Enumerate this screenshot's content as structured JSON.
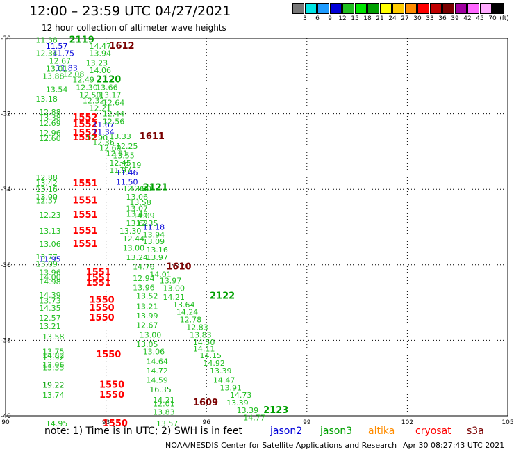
{
  "header": {
    "title": "12:00 – 23:59 UTC 04/27/2021",
    "subtitle": "12 hour collection of altimeter wave heights"
  },
  "legend": {
    "unit": "(ft)",
    "colors": [
      "#777777",
      "#00e5e5",
      "#1e9bff",
      "#0000d8",
      "#1fbf1f",
      "#00e600",
      "#00a000",
      "#ffff00",
      "#ffcc00",
      "#ff8c00",
      "#ff0000",
      "#c00000",
      "#7a0000",
      "#a000a0",
      "#ff66ff",
      "#ffaaff",
      "#000000"
    ],
    "labels": [
      "3",
      "6",
      "9",
      "12",
      "15",
      "18",
      "21",
      "24",
      "27",
      "30",
      "33",
      "36",
      "39",
      "42",
      "45",
      "70"
    ]
  },
  "map": {
    "x_ticks": [
      "90",
      "93",
      "96",
      "99",
      "102",
      "105"
    ],
    "y_ticks": [
      "-30",
      "-32",
      "-34",
      "-36",
      "-38",
      "-40"
    ]
  },
  "chart_data": {
    "type": "scatter",
    "xlim": [
      90,
      105
    ],
    "ylim": [
      -40,
      -30
    ],
    "grid": true,
    "x_ticks": [
      90,
      93,
      96,
      99,
      102,
      105
    ],
    "y_ticks": [
      -30,
      -32,
      -34,
      -36,
      -38,
      -40
    ],
    "points": [
      {
        "x": 90.9,
        "y": -30.05,
        "t": "11.38",
        "c": "#1fbf1f"
      },
      {
        "x": 91.9,
        "y": -30.05,
        "t": "2119",
        "c": "#00a000",
        "b": 1
      },
      {
        "x": 92.5,
        "y": -30.2,
        "t": "14.47",
        "c": "#1fbf1f"
      },
      {
        "x": 93.1,
        "y": -30.2,
        "t": "1612",
        "c": "#7a0000",
        "b": 1
      },
      {
        "x": 91.2,
        "y": -30.2,
        "t": "11.57",
        "c": "#0000d8"
      },
      {
        "x": 91.4,
        "y": -30.4,
        "t": "11.75",
        "c": "#0000d8"
      },
      {
        "x": 92.5,
        "y": -30.4,
        "t": "13.94",
        "c": "#1fbf1f"
      },
      {
        "x": 90.9,
        "y": -30.4,
        "t": "12.34",
        "c": "#1fbf1f"
      },
      {
        "x": 91.3,
        "y": -30.6,
        "t": "12.67",
        "c": "#1fbf1f"
      },
      {
        "x": 92.4,
        "y": -30.65,
        "t": "13.23",
        "c": "#1fbf1f"
      },
      {
        "x": 91.2,
        "y": -30.8,
        "t": "13.01",
        "c": "#1fbf1f"
      },
      {
        "x": 91.5,
        "y": -30.78,
        "t": "11.83",
        "c": "#0000d8"
      },
      {
        "x": 92.5,
        "y": -30.85,
        "t": "14.06",
        "c": "#1fbf1f"
      },
      {
        "x": 91.7,
        "y": -30.95,
        "t": "12.08",
        "c": "#1fbf1f"
      },
      {
        "x": 91.1,
        "y": -31.0,
        "t": "13.88",
        "c": "#1fbf1f"
      },
      {
        "x": 92.0,
        "y": -31.1,
        "t": "12.49",
        "c": "#1fbf1f"
      },
      {
        "x": 92.7,
        "y": -31.1,
        "t": "2120",
        "c": "#00a000",
        "b": 1
      },
      {
        "x": 92.1,
        "y": -31.3,
        "t": "12.30",
        "c": "#1fbf1f"
      },
      {
        "x": 92.7,
        "y": -31.3,
        "t": "13.66",
        "c": "#1fbf1f"
      },
      {
        "x": 91.2,
        "y": -31.35,
        "t": "13.54",
        "c": "#1fbf1f"
      },
      {
        "x": 92.2,
        "y": -31.5,
        "t": "12.50",
        "c": "#1fbf1f"
      },
      {
        "x": 92.8,
        "y": -31.5,
        "t": "13.17",
        "c": "#1fbf1f"
      },
      {
        "x": 90.9,
        "y": -31.6,
        "t": "13.18",
        "c": "#1fbf1f"
      },
      {
        "x": 92.3,
        "y": -31.65,
        "t": "12.32",
        "c": "#1fbf1f"
      },
      {
        "x": 92.9,
        "y": -31.7,
        "t": "12.64",
        "c": "#1fbf1f"
      },
      {
        "x": 92.5,
        "y": -31.85,
        "t": "12.21",
        "c": "#1fbf1f"
      },
      {
        "x": 91.0,
        "y": -31.95,
        "t": "12.88",
        "c": "#1fbf1f"
      },
      {
        "x": 92.9,
        "y": -32.0,
        "t": "12.44",
        "c": "#1fbf1f"
      },
      {
        "x": 91.0,
        "y": -32.1,
        "t": "13.38",
        "c": "#1fbf1f"
      },
      {
        "x": 92.0,
        "y": -32.1,
        "t": "1552",
        "c": "#ff0000",
        "b": 1
      },
      {
        "x": 92.9,
        "y": -32.2,
        "t": "12.56",
        "c": "#1fbf1f"
      },
      {
        "x": 91.0,
        "y": -32.25,
        "t": "12.69",
        "c": "#1fbf1f"
      },
      {
        "x": 92.0,
        "y": -32.28,
        "t": "1552",
        "c": "#ff0000",
        "b": 1
      },
      {
        "x": 92.6,
        "y": -32.28,
        "t": "11.67",
        "c": "#0000d8"
      },
      {
        "x": 91.0,
        "y": -32.5,
        "t": "12.96",
        "c": "#1fbf1f"
      },
      {
        "x": 92.0,
        "y": -32.5,
        "t": "1552",
        "c": "#ff0000",
        "b": 1
      },
      {
        "x": 92.6,
        "y": -32.48,
        "t": "11.34",
        "c": "#0000d8"
      },
      {
        "x": 91.0,
        "y": -32.65,
        "t": "12.60",
        "c": "#1fbf1f"
      },
      {
        "x": 92.0,
        "y": -32.63,
        "t": "1552",
        "c": "#ff0000",
        "b": 1
      },
      {
        "x": 92.4,
        "y": -32.63,
        "t": "12.90",
        "c": "#1fbf1f"
      },
      {
        "x": 93.1,
        "y": -32.6,
        "t": "13.33",
        "c": "#1fbf1f"
      },
      {
        "x": 94.0,
        "y": -32.6,
        "t": "1611",
        "c": "#7a0000",
        "b": 1
      },
      {
        "x": 92.6,
        "y": -32.75,
        "t": "12.36",
        "c": "#1fbf1f"
      },
      {
        "x": 93.3,
        "y": -32.85,
        "t": "12.25",
        "c": "#1fbf1f"
      },
      {
        "x": 92.8,
        "y": -32.9,
        "t": "12.60",
        "c": "#1fbf1f"
      },
      {
        "x": 93.2,
        "y": -33.1,
        "t": "13.55",
        "c": "#1fbf1f"
      },
      {
        "x": 93.0,
        "y": -33.05,
        "t": "12.81",
        "c": "#1fbf1f"
      },
      {
        "x": 93.1,
        "y": -33.3,
        "t": "12.45",
        "c": "#1fbf1f"
      },
      {
        "x": 93.4,
        "y": -33.35,
        "t": "12.19",
        "c": "#1fbf1f"
      },
      {
        "x": 93.1,
        "y": -33.5,
        "t": "11.97",
        "c": "#1fbf1f"
      },
      {
        "x": 93.3,
        "y": -33.55,
        "t": "11.46",
        "c": "#0000d8"
      },
      {
        "x": 90.9,
        "y": -33.68,
        "t": "12.88",
        "c": "#1fbf1f"
      },
      {
        "x": 93.3,
        "y": -33.8,
        "t": "11.50",
        "c": "#0000d8"
      },
      {
        "x": 90.9,
        "y": -33.83,
        "t": "13.42",
        "c": "#1fbf1f"
      },
      {
        "x": 92.0,
        "y": -33.85,
        "t": "1551",
        "c": "#ff0000",
        "b": 1
      },
      {
        "x": 90.9,
        "y": -34.0,
        "t": "13.16",
        "c": "#1fbf1f"
      },
      {
        "x": 93.5,
        "y": -33.98,
        "t": "12.36",
        "c": "#1fbf1f"
      },
      {
        "x": 93.7,
        "y": -33.98,
        "t": "12.80",
        "c": "#1fbf1f"
      },
      {
        "x": 94.1,
        "y": -33.95,
        "t": "2121",
        "c": "#00a000",
        "b": 1
      },
      {
        "x": 90.9,
        "y": -34.2,
        "t": "13.00",
        "c": "#1fbf1f"
      },
      {
        "x": 93.6,
        "y": -34.2,
        "t": "13.06",
        "c": "#1fbf1f"
      },
      {
        "x": 90.9,
        "y": -34.3,
        "t": "12.57",
        "c": "#1fbf1f"
      },
      {
        "x": 92.0,
        "y": -34.3,
        "t": "1551",
        "c": "#ff0000",
        "b": 1
      },
      {
        "x": 93.7,
        "y": -34.35,
        "t": "13.58",
        "c": "#1fbf1f"
      },
      {
        "x": 93.6,
        "y": -34.5,
        "t": "13.07",
        "c": "#1fbf1f"
      },
      {
        "x": 91.0,
        "y": -34.68,
        "t": "12.23",
        "c": "#1fbf1f"
      },
      {
        "x": 92.0,
        "y": -34.68,
        "t": "1551",
        "c": "#ff0000",
        "b": 1
      },
      {
        "x": 93.8,
        "y": -34.7,
        "t": "14.09",
        "c": "#1fbf1f"
      },
      {
        "x": 93.6,
        "y": -34.65,
        "t": "13.48",
        "c": "#1fbf1f"
      },
      {
        "x": 93.9,
        "y": -34.9,
        "t": "12.35",
        "c": "#1fbf1f"
      },
      {
        "x": 93.6,
        "y": -34.9,
        "t": "13.62",
        "c": "#1fbf1f"
      },
      {
        "x": 94.1,
        "y": -35.0,
        "t": "11.18",
        "c": "#0000d8"
      },
      {
        "x": 91.0,
        "y": -35.1,
        "t": "13.13",
        "c": "#1fbf1f"
      },
      {
        "x": 92.0,
        "y": -35.1,
        "t": "1551",
        "c": "#ff0000",
        "b": 1
      },
      {
        "x": 93.4,
        "y": -35.1,
        "t": "13.30",
        "c": "#1fbf1f"
      },
      {
        "x": 94.1,
        "y": -35.2,
        "t": "13.94",
        "c": "#1fbf1f"
      },
      {
        "x": 93.5,
        "y": -35.3,
        "t": "12.44",
        "c": "#1fbf1f"
      },
      {
        "x": 94.1,
        "y": -35.38,
        "t": "13.09",
        "c": "#1fbf1f"
      },
      {
        "x": 91.0,
        "y": -35.45,
        "t": "13.06",
        "c": "#1fbf1f"
      },
      {
        "x": 92.0,
        "y": -35.45,
        "t": "1551",
        "c": "#ff0000",
        "b": 1
      },
      {
        "x": 93.5,
        "y": -35.55,
        "t": "13.00",
        "c": "#1fbf1f"
      },
      {
        "x": 94.2,
        "y": -35.6,
        "t": "13.16",
        "c": "#1fbf1f"
      },
      {
        "x": 90.9,
        "y": -35.78,
        "t": "13.77",
        "c": "#1fbf1f"
      },
      {
        "x": 93.6,
        "y": -35.8,
        "t": "13.24",
        "c": "#1fbf1f"
      },
      {
        "x": 94.2,
        "y": -35.8,
        "t": "13.97",
        "c": "#1fbf1f"
      },
      {
        "x": 91.0,
        "y": -35.85,
        "t": "11.95",
        "c": "#0000d8"
      },
      {
        "x": 90.9,
        "y": -35.98,
        "t": "13.09",
        "c": "#1fbf1f"
      },
      {
        "x": 93.8,
        "y": -36.05,
        "t": "14.76",
        "c": "#1fbf1f"
      },
      {
        "x": 94.8,
        "y": -36.05,
        "t": "1610",
        "c": "#7a0000",
        "b": 1
      },
      {
        "x": 91.0,
        "y": -36.2,
        "t": "13.96",
        "c": "#1fbf1f"
      },
      {
        "x": 92.4,
        "y": -36.2,
        "t": "1551",
        "c": "#ff0000",
        "b": 1
      },
      {
        "x": 94.3,
        "y": -36.25,
        "t": "14.01",
        "c": "#1fbf1f"
      },
      {
        "x": 91.0,
        "y": -36.33,
        "t": "14.00",
        "c": "#1fbf1f"
      },
      {
        "x": 92.4,
        "y": -36.35,
        "t": "1551",
        "c": "#ff0000",
        "b": 1
      },
      {
        "x": 93.8,
        "y": -36.35,
        "t": "12.94",
        "c": "#1fbf1f"
      },
      {
        "x": 94.6,
        "y": -36.42,
        "t": "13.97",
        "c": "#1fbf1f"
      },
      {
        "x": 91.0,
        "y": -36.45,
        "t": "14.98",
        "c": "#1fbf1f"
      },
      {
        "x": 92.4,
        "y": -36.48,
        "t": "1551",
        "c": "#ff0000",
        "b": 1
      },
      {
        "x": 93.8,
        "y": -36.6,
        "t": "13.96",
        "c": "#1fbf1f"
      },
      {
        "x": 94.7,
        "y": -36.62,
        "t": "13.00",
        "c": "#1fbf1f"
      },
      {
        "x": 91.0,
        "y": -36.8,
        "t": "14.39",
        "c": "#1fbf1f"
      },
      {
        "x": 93.9,
        "y": -36.82,
        "t": "13.52",
        "c": "#1fbf1f"
      },
      {
        "x": 94.7,
        "y": -36.85,
        "t": "14.21",
        "c": "#1fbf1f"
      },
      {
        "x": 96.1,
        "y": -36.82,
        "t": "2122",
        "c": "#00a000",
        "b": 1
      },
      {
        "x": 91.0,
        "y": -36.95,
        "t": "13.73",
        "c": "#1fbf1f"
      },
      {
        "x": 92.5,
        "y": -36.93,
        "t": "1550",
        "c": "#ff0000",
        "b": 1
      },
      {
        "x": 95.0,
        "y": -37.05,
        "t": "13.64",
        "c": "#1fbf1f"
      },
      {
        "x": 91.0,
        "y": -37.15,
        "t": "14.35",
        "c": "#1fbf1f"
      },
      {
        "x": 92.5,
        "y": -37.15,
        "t": "1550",
        "c": "#ff0000",
        "b": 1
      },
      {
        "x": 93.9,
        "y": -37.1,
        "t": "13.21",
        "c": "#1fbf1f"
      },
      {
        "x": 95.1,
        "y": -37.25,
        "t": "14.24",
        "c": "#1fbf1f"
      },
      {
        "x": 91.0,
        "y": -37.4,
        "t": "12.57",
        "c": "#1fbf1f"
      },
      {
        "x": 92.5,
        "y": -37.4,
        "t": "1550",
        "c": "#ff0000",
        "b": 1
      },
      {
        "x": 93.9,
        "y": -37.35,
        "t": "13.99",
        "c": "#1fbf1f"
      },
      {
        "x": 95.2,
        "y": -37.45,
        "t": "12.78",
        "c": "#1fbf1f"
      },
      {
        "x": 91.0,
        "y": -37.62,
        "t": "13.21",
        "c": "#1fbf1f"
      },
      {
        "x": 93.9,
        "y": -37.6,
        "t": "12.67",
        "c": "#1fbf1f"
      },
      {
        "x": 95.4,
        "y": -37.65,
        "t": "12.83",
        "c": "#1fbf1f"
      },
      {
        "x": 91.1,
        "y": -37.9,
        "t": "13.58",
        "c": "#1fbf1f"
      },
      {
        "x": 94.0,
        "y": -37.85,
        "t": "13.00",
        "c": "#1fbf1f"
      },
      {
        "x": 95.5,
        "y": -37.85,
        "t": "13.83",
        "c": "#1fbf1f"
      },
      {
        "x": 93.9,
        "y": -38.1,
        "t": "13.05",
        "c": "#1fbf1f"
      },
      {
        "x": 95.6,
        "y": -38.05,
        "t": "14.50",
        "c": "#1fbf1f"
      },
      {
        "x": 95.6,
        "y": -38.22,
        "t": "14.11",
        "c": "#1fbf1f"
      },
      {
        "x": 91.1,
        "y": -38.3,
        "t": "13.75",
        "c": "#1fbf1f"
      },
      {
        "x": 94.1,
        "y": -38.3,
        "t": "13.06",
        "c": "#1fbf1f"
      },
      {
        "x": 91.1,
        "y": -38.4,
        "t": "14.82",
        "c": "#1fbf1f"
      },
      {
        "x": 92.7,
        "y": -38.38,
        "t": "1550",
        "c": "#ff0000",
        "b": 1
      },
      {
        "x": 95.8,
        "y": -38.4,
        "t": "14.15",
        "c": "#1fbf1f"
      },
      {
        "x": 91.1,
        "y": -38.45,
        "t": "13.92",
        "c": "#1fbf1f"
      },
      {
        "x": 94.2,
        "y": -38.55,
        "t": "14.64",
        "c": "#1fbf1f"
      },
      {
        "x": 95.9,
        "y": -38.6,
        "t": "14.92",
        "c": "#1fbf1f"
      },
      {
        "x": 91.1,
        "y": -38.65,
        "t": "13.06",
        "c": "#1fbf1f"
      },
      {
        "x": 91.1,
        "y": -38.72,
        "t": "13.35",
        "c": "#1fbf1f"
      },
      {
        "x": 94.2,
        "y": -38.8,
        "t": "14.72",
        "c": "#1fbf1f"
      },
      {
        "x": 96.1,
        "y": -38.8,
        "t": "13.39",
        "c": "#1fbf1f"
      },
      {
        "x": 96.2,
        "y": -39.05,
        "t": "14.47",
        "c": "#1fbf1f"
      },
      {
        "x": 94.2,
        "y": -39.05,
        "t": "14.59",
        "c": "#1fbf1f"
      },
      {
        "x": 91.1,
        "y": -39.18,
        "t": "19.22",
        "c": "#00a000"
      },
      {
        "x": 92.8,
        "y": -39.18,
        "t": "1550",
        "c": "#ff0000",
        "b": 1
      },
      {
        "x": 96.4,
        "y": -39.25,
        "t": "13.91",
        "c": "#1fbf1f"
      },
      {
        "x": 94.3,
        "y": -39.3,
        "t": "16.35",
        "c": "#00a000"
      },
      {
        "x": 96.7,
        "y": -39.45,
        "t": "14.73",
        "c": "#1fbf1f"
      },
      {
        "x": 91.1,
        "y": -39.45,
        "t": "13.74",
        "c": "#1fbf1f"
      },
      {
        "x": 92.8,
        "y": -39.45,
        "t": "1550",
        "c": "#ff0000",
        "b": 1
      },
      {
        "x": 94.4,
        "y": -39.58,
        "t": "14.21",
        "c": "#1fbf1f"
      },
      {
        "x": 96.6,
        "y": -39.65,
        "t": "13.39",
        "c": "#1fbf1f"
      },
      {
        "x": 95.6,
        "y": -39.65,
        "t": "1609",
        "c": "#7a0000",
        "b": 1
      },
      {
        "x": 94.4,
        "y": -39.68,
        "t": "12.01",
        "c": "#1fbf1f"
      },
      {
        "x": 96.9,
        "y": -39.85,
        "t": "13.39",
        "c": "#1fbf1f"
      },
      {
        "x": 97.7,
        "y": -39.85,
        "t": "2123",
        "c": "#00a000",
        "b": 1
      },
      {
        "x": 94.4,
        "y": -39.9,
        "t": "13.83",
        "c": "#1fbf1f"
      },
      {
        "x": 97.1,
        "y": -40.05,
        "t": "14.77",
        "c": "#1fbf1f"
      },
      {
        "x": 91.2,
        "y": -40.2,
        "t": "14.95",
        "c": "#1fbf1f"
      },
      {
        "x": 92.9,
        "y": -40.2,
        "t": "1550",
        "c": "#ff0000",
        "b": 1
      },
      {
        "x": 94.5,
        "y": -40.2,
        "t": "13.57",
        "c": "#1fbf1f"
      }
    ]
  },
  "footer": {
    "note_prefix": "note: 1) Time is in UTC; 2) SWH is in feet",
    "satellites": [
      {
        "name": "jason2",
        "color": "#0000d8"
      },
      {
        "name": "jason3",
        "color": "#00a000"
      },
      {
        "name": "altika",
        "color": "#ff8c00"
      },
      {
        "name": "cryosat",
        "color": "#ff0000"
      },
      {
        "name": "s3a",
        "color": "#7a0000"
      }
    ],
    "credit": "NOAA/NESDIS Center for Satellite Applications and Research",
    "timestamp": "Apr 30 08:27:43 UTC 2021"
  }
}
